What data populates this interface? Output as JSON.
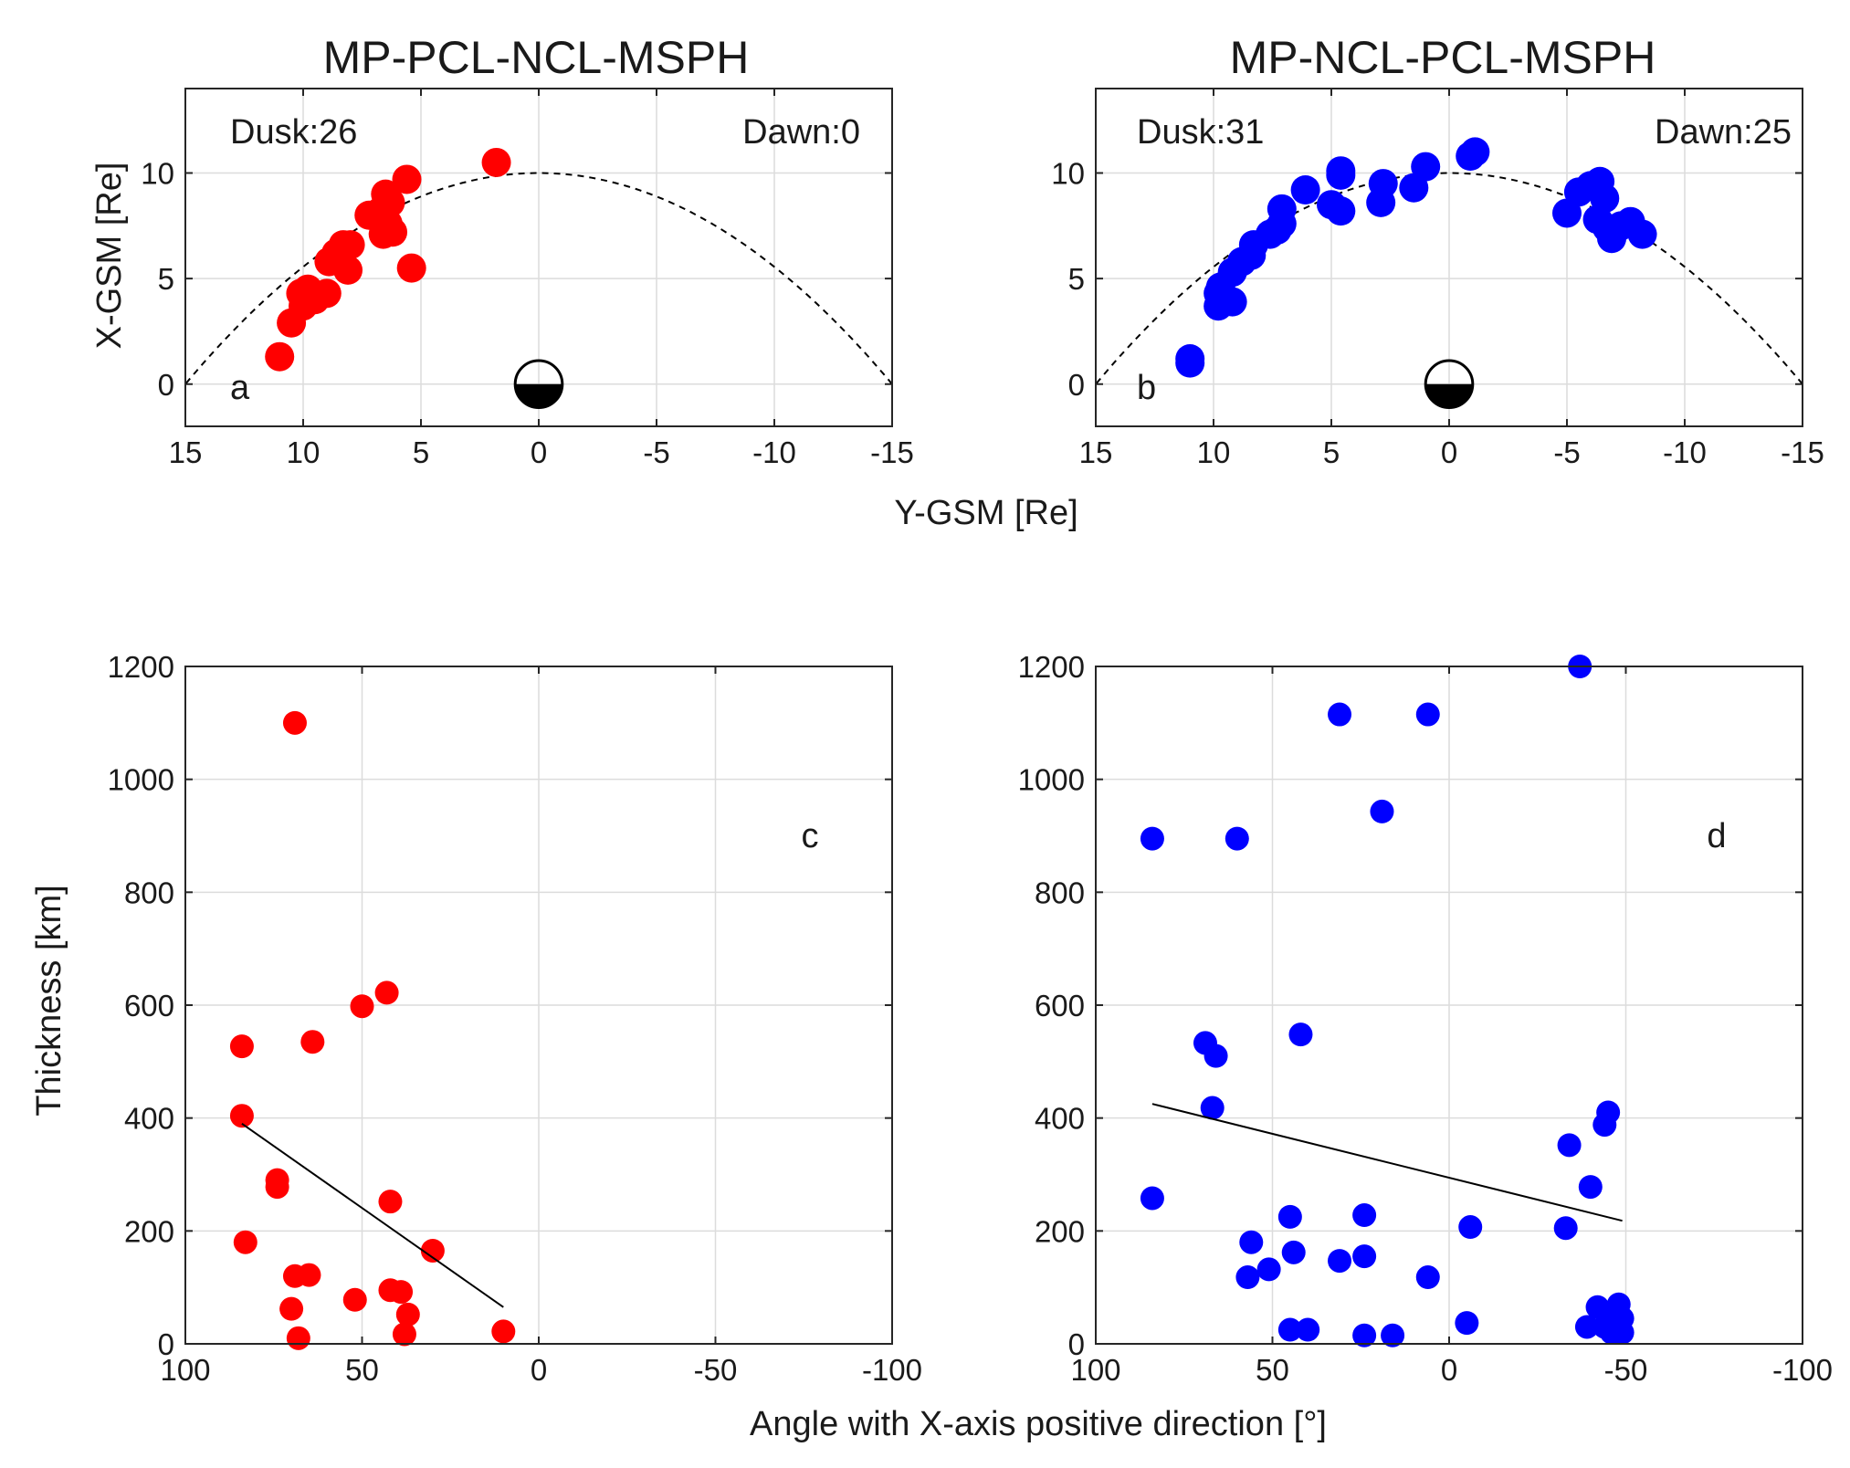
{
  "figure": {
    "shared_xlabel_top": "Y-GSM  [Re]",
    "shared_xlabel_bottom": "Angle with X-axis positive direction [°]"
  },
  "chart_data": [
    {
      "id": "a",
      "type": "scatter",
      "title": "MP-PCL-NCL-MSPH",
      "xlabel": "",
      "ylabel": "X-GSM  [Re]",
      "xlim": [
        15,
        -15
      ],
      "ylim": [
        -2,
        14
      ],
      "xticks": [
        15,
        10,
        5,
        0,
        -5,
        -10,
        -15
      ],
      "xtick_labels": [
        "15",
        "10",
        "5",
        "0",
        "-5",
        "-10",
        "-15"
      ],
      "yticks": [
        0,
        5,
        10
      ],
      "ytick_labels": [
        "0",
        "5",
        "10"
      ],
      "grid": true,
      "panel_label": "a",
      "annotations": {
        "left": "Dusk:26",
        "right": "Dawn:0"
      },
      "marker_color": "#ff0000",
      "earth": {
        "x": 0,
        "y": 0,
        "radius_re": 1
      },
      "curve": {
        "type": "parabola",
        "vertex_x": 10,
        "zero_at_y": 15,
        "style": "dashed"
      },
      "points": [
        {
          "x": 11.0,
          "y": 1.3
        },
        {
          "x": 10.5,
          "y": 2.9
        },
        {
          "x": 10.0,
          "y": 3.7
        },
        {
          "x": 10.1,
          "y": 4.3
        },
        {
          "x": 9.8,
          "y": 4.5
        },
        {
          "x": 9.5,
          "y": 4.0
        },
        {
          "x": 9.0,
          "y": 4.3
        },
        {
          "x": 8.9,
          "y": 5.8
        },
        {
          "x": 8.6,
          "y": 6.2
        },
        {
          "x": 8.3,
          "y": 6.6
        },
        {
          "x": 8.0,
          "y": 6.6
        },
        {
          "x": 8.1,
          "y": 5.4
        },
        {
          "x": 7.2,
          "y": 8.0
        },
        {
          "x": 6.7,
          "y": 8.2
        },
        {
          "x": 6.5,
          "y": 9.0
        },
        {
          "x": 6.3,
          "y": 8.6
        },
        {
          "x": 6.4,
          "y": 7.6
        },
        {
          "x": 6.2,
          "y": 7.2
        },
        {
          "x": 6.6,
          "y": 7.1
        },
        {
          "x": 5.6,
          "y": 9.7
        },
        {
          "x": 5.4,
          "y": 5.5
        },
        {
          "x": 1.8,
          "y": 10.5
        }
      ]
    },
    {
      "id": "b",
      "type": "scatter",
      "title": "MP-NCL-PCL-MSPH",
      "xlabel": "",
      "ylabel": "",
      "xlim": [
        15,
        -15
      ],
      "ylim": [
        -2,
        14
      ],
      "xticks": [
        15,
        10,
        5,
        0,
        -5,
        -10,
        -15
      ],
      "xtick_labels": [
        "15",
        "10",
        "5",
        "0",
        "-5",
        "-10",
        "-15"
      ],
      "yticks": [
        0,
        5,
        10
      ],
      "ytick_labels": [
        "0",
        "5",
        "10"
      ],
      "grid": true,
      "panel_label": "b",
      "annotations": {
        "left": "Dusk:31",
        "right": "Dawn:25"
      },
      "marker_color": "#0000ff",
      "earth": {
        "x": 0,
        "y": 0,
        "radius_re": 1
      },
      "curve": {
        "type": "parabola",
        "vertex_x": 10,
        "zero_at_y": 15,
        "style": "dashed"
      },
      "points": [
        {
          "x": 11.0,
          "y": 1.2
        },
        {
          "x": 11.0,
          "y": 1.0
        },
        {
          "x": 9.8,
          "y": 3.7
        },
        {
          "x": 9.8,
          "y": 4.3
        },
        {
          "x": 9.7,
          "y": 4.6
        },
        {
          "x": 9.2,
          "y": 3.9
        },
        {
          "x": 9.2,
          "y": 5.3
        },
        {
          "x": 8.8,
          "y": 5.8
        },
        {
          "x": 8.4,
          "y": 6.1
        },
        {
          "x": 8.3,
          "y": 6.6
        },
        {
          "x": 7.6,
          "y": 7.1
        },
        {
          "x": 7.3,
          "y": 7.3
        },
        {
          "x": 7.1,
          "y": 7.6
        },
        {
          "x": 7.1,
          "y": 8.3
        },
        {
          "x": 6.1,
          "y": 9.2
        },
        {
          "x": 5.0,
          "y": 8.5
        },
        {
          "x": 4.6,
          "y": 10.1
        },
        {
          "x": 4.6,
          "y": 9.9
        },
        {
          "x": 4.6,
          "y": 8.2
        },
        {
          "x": 2.8,
          "y": 9.5
        },
        {
          "x": 2.9,
          "y": 8.6
        },
        {
          "x": 1.5,
          "y": 9.3
        },
        {
          "x": 1.0,
          "y": 10.3
        },
        {
          "x": -0.9,
          "y": 10.8
        },
        {
          "x": -1.1,
          "y": 11.0
        },
        {
          "x": -5.0,
          "y": 8.1
        },
        {
          "x": -5.5,
          "y": 9.1
        },
        {
          "x": -6.0,
          "y": 9.4
        },
        {
          "x": -6.4,
          "y": 9.6
        },
        {
          "x": -6.6,
          "y": 8.8
        },
        {
          "x": -6.3,
          "y": 7.8
        },
        {
          "x": -6.7,
          "y": 7.4
        },
        {
          "x": -6.9,
          "y": 6.9
        },
        {
          "x": -7.3,
          "y": 7.5
        },
        {
          "x": -7.7,
          "y": 7.7
        },
        {
          "x": -8.2,
          "y": 7.1
        }
      ]
    },
    {
      "id": "c",
      "type": "scatter",
      "title": "",
      "xlabel": "",
      "ylabel": "Thickness [km]",
      "xlim": [
        100,
        -100
      ],
      "ylim": [
        0,
        1200
      ],
      "xticks": [
        100,
        50,
        0,
        -50,
        -100
      ],
      "xtick_labels": [
        "100",
        "50",
        "0",
        "-50",
        "-100"
      ],
      "yticks": [
        0,
        200,
        400,
        600,
        800,
        1000,
        1200
      ],
      "ytick_labels": [
        "0",
        "200",
        "400",
        "600",
        "800",
        "1000",
        "1200"
      ],
      "grid": true,
      "panel_label": "c",
      "marker_color": "#ff0000",
      "fit_line": {
        "x": [
          84,
          10
        ],
        "y": [
          390,
          65
        ]
      },
      "points": [
        {
          "x": 84,
          "y": 527
        },
        {
          "x": 84,
          "y": 404
        },
        {
          "x": 83,
          "y": 180
        },
        {
          "x": 74,
          "y": 290
        },
        {
          "x": 74,
          "y": 278
        },
        {
          "x": 69,
          "y": 1100
        },
        {
          "x": 69,
          "y": 120
        },
        {
          "x": 70,
          "y": 62
        },
        {
          "x": 68,
          "y": 10
        },
        {
          "x": 65,
          "y": 122
        },
        {
          "x": 64,
          "y": 535
        },
        {
          "x": 50,
          "y": 598
        },
        {
          "x": 52,
          "y": 78
        },
        {
          "x": 43,
          "y": 622
        },
        {
          "x": 42,
          "y": 252
        },
        {
          "x": 42,
          "y": 95
        },
        {
          "x": 39,
          "y": 92
        },
        {
          "x": 37,
          "y": 52
        },
        {
          "x": 38,
          "y": 17
        },
        {
          "x": 30,
          "y": 165
        },
        {
          "x": 10,
          "y": 22
        }
      ]
    },
    {
      "id": "d",
      "type": "scatter",
      "title": "",
      "xlabel": "",
      "ylabel": "",
      "xlim": [
        100,
        -100
      ],
      "ylim": [
        0,
        1200
      ],
      "xticks": [
        100,
        50,
        0,
        -50,
        -100
      ],
      "xtick_labels": [
        "100",
        "50",
        "0",
        "-50",
        "-100"
      ],
      "yticks": [
        0,
        200,
        400,
        600,
        800,
        1000,
        1200
      ],
      "ytick_labels": [
        "0",
        "200",
        "400",
        "600",
        "800",
        "1000",
        "1200"
      ],
      "grid": true,
      "panel_label": "d",
      "marker_color": "#0000ff",
      "fit_line": {
        "x": [
          84,
          -49
        ],
        "y": [
          425,
          218
        ]
      },
      "points": [
        {
          "x": 84,
          "y": 895
        },
        {
          "x": 84,
          "y": 258
        },
        {
          "x": 69,
          "y": 533
        },
        {
          "x": 67,
          "y": 418
        },
        {
          "x": 66,
          "y": 510
        },
        {
          "x": 60,
          "y": 895
        },
        {
          "x": 56,
          "y": 180
        },
        {
          "x": 57,
          "y": 118
        },
        {
          "x": 51,
          "y": 132
        },
        {
          "x": 45,
          "y": 225
        },
        {
          "x": 44,
          "y": 162
        },
        {
          "x": 45,
          "y": 25
        },
        {
          "x": 42,
          "y": 548
        },
        {
          "x": 40,
          "y": 25
        },
        {
          "x": 31,
          "y": 1115
        },
        {
          "x": 31,
          "y": 147
        },
        {
          "x": 24,
          "y": 228
        },
        {
          "x": 24,
          "y": 155
        },
        {
          "x": 24,
          "y": 15
        },
        {
          "x": 19,
          "y": 943
        },
        {
          "x": 16,
          "y": 15
        },
        {
          "x": 6,
          "y": 1115
        },
        {
          "x": 6,
          "y": 118
        },
        {
          "x": -5,
          "y": 37
        },
        {
          "x": -6,
          "y": 207
        },
        {
          "x": -33,
          "y": 205
        },
        {
          "x": -34,
          "y": 352
        },
        {
          "x": -37,
          "y": 1200
        },
        {
          "x": -39,
          "y": 30
        },
        {
          "x": -40,
          "y": 278
        },
        {
          "x": -42,
          "y": 65
        },
        {
          "x": -44,
          "y": 388
        },
        {
          "x": -45,
          "y": 410
        },
        {
          "x": -44,
          "y": 30
        },
        {
          "x": -46,
          "y": 20
        },
        {
          "x": -47,
          "y": 55
        },
        {
          "x": -48,
          "y": 70
        },
        {
          "x": -49,
          "y": 20
        },
        {
          "x": -49,
          "y": 45
        }
      ]
    }
  ]
}
